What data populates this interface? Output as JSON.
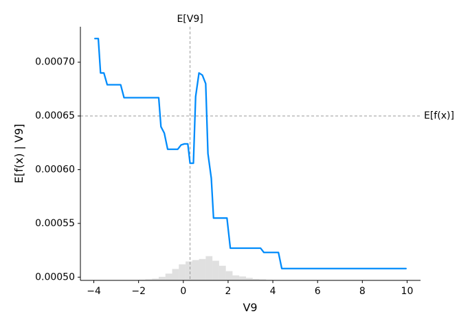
{
  "chart_data": {
    "type": "line",
    "title": "",
    "xlabel": "V9",
    "ylabel": "E[f(x) | V9]",
    "xlim": [
      -4.6,
      10.6
    ],
    "ylim": [
      0.000497,
      0.000733
    ],
    "xticks": [
      -4,
      -2,
      0,
      2,
      4,
      6,
      8,
      10
    ],
    "xtick_labels": [
      "−4",
      "−2",
      "0",
      "2",
      "4",
      "6",
      "8",
      "10"
    ],
    "yticks": [
      0.0005,
      0.00055,
      0.0006,
      0.00065,
      0.0007
    ],
    "ytick_labels": [
      "0.00050",
      "0.00055",
      "0.00060",
      "0.00065",
      "0.00070"
    ],
    "grid": false,
    "line_color": "#008bfb",
    "reference_color": "#999999",
    "histogram_color": "#cccccc",
    "series": [
      {
        "values": [
          [
            -3.95,
            0.000722
          ],
          [
            -3.8,
            0.000722
          ],
          [
            -3.7,
            0.00069
          ],
          [
            -3.55,
            0.00069
          ],
          [
            -3.4,
            0.000679
          ],
          [
            -2.8,
            0.000679
          ],
          [
            -2.65,
            0.000667
          ],
          [
            -1.1,
            0.000667
          ],
          [
            -1.0,
            0.00064
          ],
          [
            -0.85,
            0.000634
          ],
          [
            -0.7,
            0.000619
          ],
          [
            -0.25,
            0.000619
          ],
          [
            -0.1,
            0.000623
          ],
          [
            0.05,
            0.000624
          ],
          [
            0.2,
            0.000624
          ],
          [
            0.3,
            0.000606
          ],
          [
            0.45,
            0.000606
          ],
          [
            0.55,
            0.000668
          ],
          [
            0.7,
            0.00069
          ],
          [
            0.85,
            0.000688
          ],
          [
            1.0,
            0.00068
          ],
          [
            1.1,
            0.000615
          ],
          [
            1.25,
            0.000592
          ],
          [
            1.35,
            0.000555
          ],
          [
            1.95,
            0.000555
          ],
          [
            2.1,
            0.000527
          ],
          [
            3.45,
            0.000527
          ],
          [
            3.6,
            0.000523
          ],
          [
            4.25,
            0.000523
          ],
          [
            4.4,
            0.000508
          ],
          [
            9.95,
            0.000508
          ]
        ]
      }
    ],
    "reference_lines": {
      "expected_x": {
        "label": "E[V9]",
        "x": 0.3
      },
      "expected_y": {
        "label": "E[f(x)]",
        "y": 0.00065
      }
    },
    "histogram": {
      "bin_start": -3.8,
      "bin_width": 0.3,
      "heights": [
        0.0,
        0.0,
        0.0,
        0.0,
        0.006,
        0.01,
        0.017,
        0.03,
        0.05,
        0.1,
        0.19,
        0.32,
        0.45,
        0.53,
        0.57,
        0.6,
        0.68,
        0.55,
        0.41,
        0.26,
        0.14,
        0.11,
        0.07,
        0.04,
        0.03,
        0.015,
        0.012,
        0.008,
        0.004,
        0.002
      ]
    }
  }
}
